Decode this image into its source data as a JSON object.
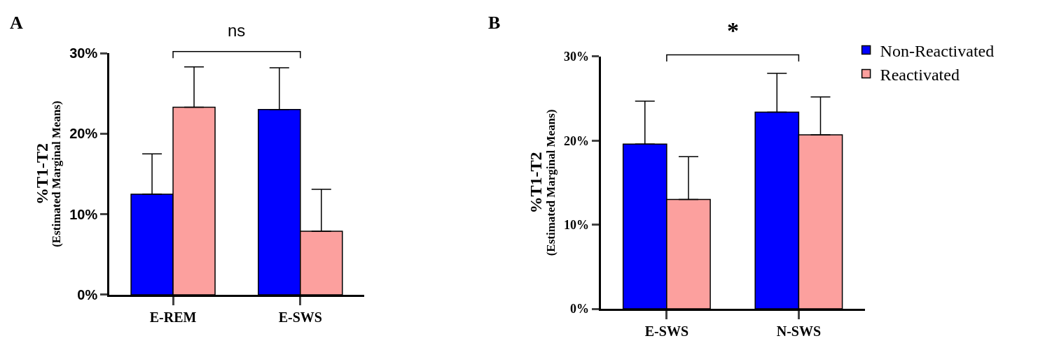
{
  "chart_data": [
    {
      "type": "bar",
      "title": "A",
      "ylabel": "%T1-T2\n(Estimated Marginal Means)",
      "categories": [
        "E-REM",
        "E-SWS"
      ],
      "series": [
        {
          "color": "#0000ff",
          "values": [
            12.5,
            23.0
          ],
          "errors": [
            [
              12.5,
              17.5
            ],
            [
              23.0,
              28.2
            ]
          ]
        },
        {
          "color": "#fca09e",
          "values": [
            23.3,
            7.9
          ],
          "errors": [
            [
              23.3,
              28.3
            ],
            [
              7.9,
              13.1
            ]
          ]
        }
      ],
      "ylim": [
        0,
        30
      ],
      "yticks": [
        {
          "value": 0,
          "label": "0%"
        },
        {
          "value": 10,
          "label": "10%"
        },
        {
          "value": 20,
          "label": "20%"
        },
        {
          "value": 30,
          "label": "30%"
        }
      ],
      "annotations": [
        "ns"
      ]
    },
    {
      "type": "bar",
      "title": "B",
      "ylabel": "%T1-T2\n(Estimated Marginal Means)",
      "categories": [
        "E-SWS",
        "N-SWS"
      ],
      "series": [
        {
          "name": "Non-Reactivated",
          "color": "#0000ff",
          "values": [
            19.6,
            23.4
          ],
          "errors": [
            [
              19.6,
              24.7
            ],
            [
              23.4,
              28.0
            ]
          ]
        },
        {
          "name": "Reactivated",
          "color": "#fca09e",
          "values": [
            13.0,
            20.7
          ],
          "errors": [
            [
              13.0,
              18.1
            ],
            [
              20.7,
              25.2
            ]
          ]
        }
      ],
      "ylim": [
        0,
        30
      ],
      "yticks": [
        {
          "value": 0,
          "label": "0%"
        },
        {
          "value": 10,
          "label": "10%"
        },
        {
          "value": 20,
          "label": "20%"
        },
        {
          "value": 30,
          "label": "30%"
        }
      ],
      "annotations": [
        "*"
      ],
      "legend": "top right"
    }
  ]
}
